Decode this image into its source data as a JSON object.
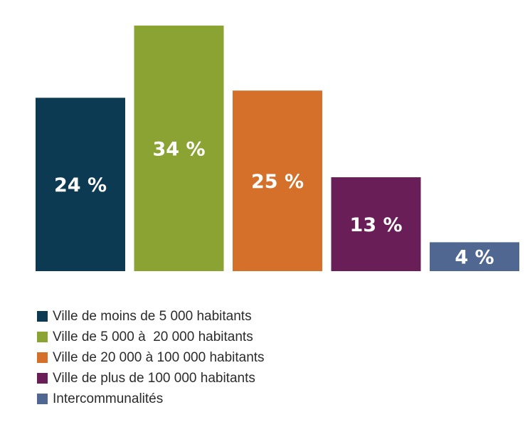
{
  "chart_data": {
    "type": "bar",
    "title": "",
    "xlabel": "",
    "ylabel": "",
    "unit": "%",
    "ylim": [
      0,
      35
    ],
    "grid": false,
    "legend_position": "bottom",
    "categories": [
      "Ville de moins de 5 000 habitants",
      "Ville de 5 000 à  20 000 habitants",
      "Ville de 20 000 à 100 000 habitants",
      "Ville de plus de 100 000 habitants",
      "Intercommunalités"
    ],
    "values": [
      24,
      34,
      25,
      13,
      4
    ],
    "data_labels": [
      "24 %",
      "34 %",
      "25 %",
      "13 %",
      "4 %"
    ],
    "colors": [
      "#0b3a52",
      "#8aa332",
      "#d4702a",
      "#6a1e58",
      "#4f6791"
    ]
  }
}
